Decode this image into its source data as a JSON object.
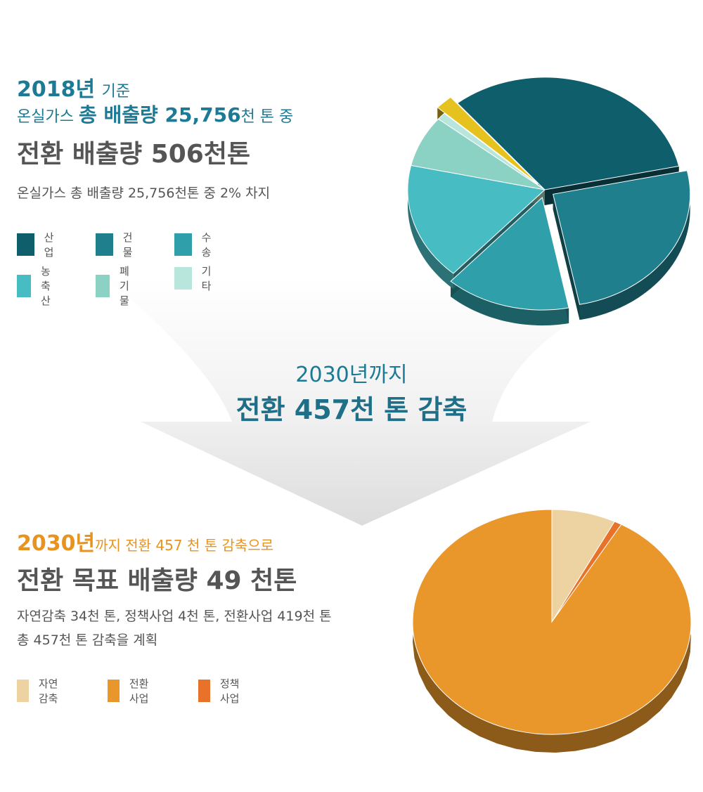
{
  "top": {
    "line1_year": "2018년",
    "line1_rest": "기준",
    "line2_a": "온실가스",
    "line2_b": "총 배출량 25,756",
    "line2_c": "천 톤 중",
    "heading_hl": "전환 배출량",
    "heading_num": "506천톤",
    "sub": "온실가스 총 배출량 25,756천톤 중 2% 차지",
    "legend": [
      {
        "label": "산업",
        "color": "#0f5e6b"
      },
      {
        "label": "건물",
        "color": "#1f7f8c"
      },
      {
        "label": "수송",
        "color": "#2fa0aa"
      },
      {
        "label": "농축산",
        "color": "#48bcc3"
      },
      {
        "label": "폐기물",
        "color": "#8bd1c4"
      },
      {
        "label": "기타",
        "color": "#b9e6dc"
      }
    ]
  },
  "middle": {
    "line1": "2030년까지",
    "line2": "전환 457천 톤 감축"
  },
  "bottom": {
    "line1_year": "2030년",
    "line1_rest": "까지 전환 457 천 톤 감축으로",
    "heading": "전환 목표 배출량 49 천톤",
    "sub1": "자연감축 34천 톤, 정책사업 4천 톤, 전환사업 419천 톤",
    "sub2": "총 457천 톤 감축을 계획",
    "legend": [
      {
        "label": "자연감축",
        "color": "#ecd3a1"
      },
      {
        "label": "전환사업",
        "color": "#e9962a"
      },
      {
        "label": "정책사업",
        "color": "#e8722a"
      }
    ]
  },
  "chart_data": [
    {
      "type": "pie",
      "categories": [
        "산업",
        "건물",
        "수송",
        "농축산",
        "폐기물",
        "기타",
        "전환"
      ],
      "values": [
        31,
        24,
        14,
        16,
        7,
        1,
        2
      ],
      "colors": [
        "#0f5e6b",
        "#1f7f8c",
        "#2fa0aa",
        "#48bcc3",
        "#8bd1c4",
        "#b9e6dc",
        "#e6c21e"
      ],
      "exploded": [
        false,
        true,
        true,
        false,
        false,
        false,
        true
      ],
      "title": ""
    },
    {
      "type": "pie",
      "categories": [
        "자연감축",
        "정책사업",
        "전환사업"
      ],
      "values": [
        34,
        4,
        419
      ],
      "colors": [
        "#ecd3a1",
        "#e8722a",
        "#e9962a"
      ],
      "title": ""
    }
  ]
}
